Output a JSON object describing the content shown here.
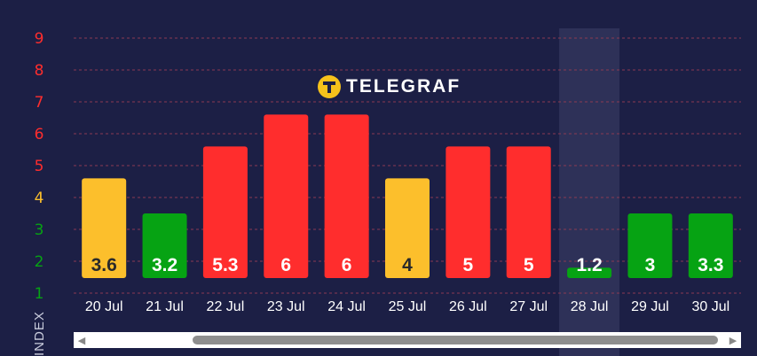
{
  "brand": {
    "name": "TELEGRAF"
  },
  "axis_title": "INDEX",
  "colors": {
    "background": "#1c1f45",
    "red": "#ff2d2d",
    "yellow": "#fcbf2c",
    "green": "#06a313",
    "highlight": "#2e3158",
    "grid": "#8a3a52"
  },
  "icons": {
    "scroll_left": "arrow-left-icon",
    "scroll_right": "arrow-right-icon"
  },
  "chart_data": {
    "type": "bar",
    "categories": [
      "20 Jul",
      "21 Jul",
      "22 Jul",
      "23 Jul",
      "24 Jul",
      "25 Jul",
      "26 Jul",
      "27 Jul",
      "28 Jul",
      "29 Jul",
      "30 Jul"
    ],
    "values": [
      3.6,
      3.2,
      5.3,
      6,
      6,
      4,
      5,
      5,
      1.2,
      3,
      3.3
    ],
    "value_labels": [
      "3.6",
      "3.2",
      "5.3",
      "6",
      "6",
      "4",
      "5",
      "5",
      "1.2",
      "3",
      "3.3"
    ],
    "bar_levels": [
      4.6,
      3.5,
      5.6,
      6.6,
      6.6,
      4.6,
      5.6,
      5.6,
      1.8,
      3.5,
      3.5
    ],
    "bar_colors": [
      "yellow",
      "green",
      "red",
      "red",
      "red",
      "yellow",
      "red",
      "red",
      "green",
      "green",
      "green"
    ],
    "highlighted_category": "28 Jul",
    "ylim": [
      1,
      9
    ],
    "yticks": [
      {
        "v": 9,
        "label": "9",
        "color": "red"
      },
      {
        "v": 8,
        "label": "8",
        "color": "red"
      },
      {
        "v": 7,
        "label": "7",
        "color": "red"
      },
      {
        "v": 6,
        "label": "6",
        "color": "red"
      },
      {
        "v": 5,
        "label": "5",
        "color": "red"
      },
      {
        "v": 4,
        "label": "4",
        "color": "yellow"
      },
      {
        "v": 3,
        "label": "3",
        "color": "green"
      },
      {
        "v": 2,
        "label": "2",
        "color": "green"
      },
      {
        "v": 1,
        "label": "1",
        "color": "green"
      }
    ],
    "grid": true
  }
}
